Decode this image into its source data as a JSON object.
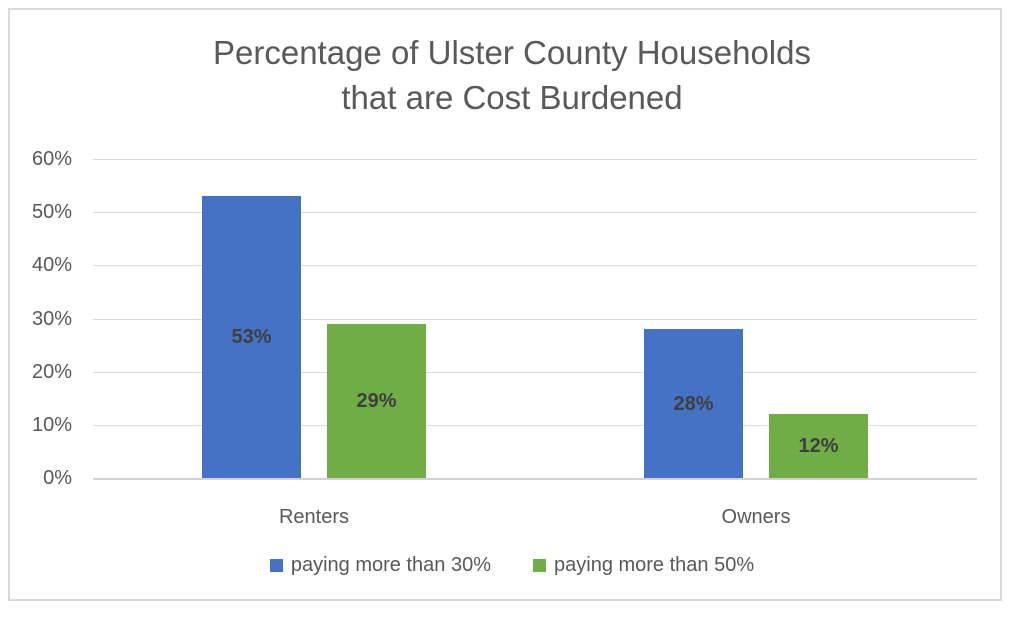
{
  "chart_data": {
    "type": "bar",
    "title": "Percentage of Ulster County Households that are Cost Burdened",
    "title_lines": [
      "Percentage of Ulster County Households",
      "that are Cost Burdened"
    ],
    "categories": [
      "Renters",
      "Owners"
    ],
    "series": [
      {
        "name": "paying more than 30%",
        "color": "#4472C4",
        "values": [
          53,
          28
        ],
        "data_labels": [
          "53%",
          "28%"
        ]
      },
      {
        "name": "paying more than 50%",
        "color": "#70AD47",
        "values": [
          29,
          12
        ],
        "data_labels": [
          "29%",
          "12%"
        ]
      }
    ],
    "xlabel": "",
    "ylabel": "",
    "y_axis": {
      "min": 0,
      "max": 60,
      "step": 10,
      "ticks": [
        "0%",
        "10%",
        "20%",
        "30%",
        "40%",
        "50%",
        "60%"
      ]
    },
    "grid": true,
    "legend_position": "bottom",
    "colors": {
      "series_blue": "#4472C4",
      "series_green": "#70AD47",
      "title_text": "#595959",
      "axis_text": "#595959",
      "data_label_text": "#3f3f3f",
      "gridline": "#dcdcdc",
      "frame_border": "#d9d9d9"
    }
  }
}
